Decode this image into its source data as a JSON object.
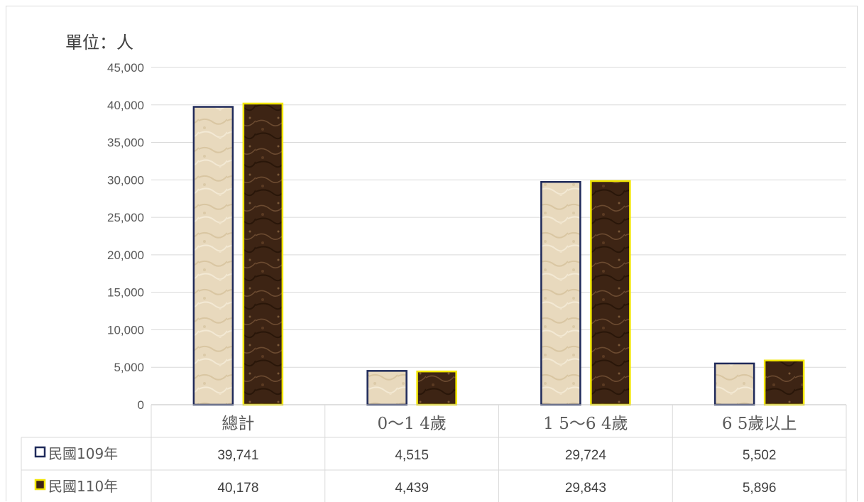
{
  "chart_data": {
    "type": "bar",
    "unit_label": "單位：人",
    "categories": [
      "總計",
      "0～1 4歲",
      "1 5～6 4歲",
      "6 5歲以上"
    ],
    "series": [
      {
        "name": "民國109年",
        "values": [
          39741,
          4515,
          29724,
          5502
        ],
        "labels": [
          "39,741",
          "4,515",
          "29,724",
          "5,502"
        ],
        "color": "#e8d9bd",
        "border": "#1f2a5a",
        "legend_marker": "□"
      },
      {
        "name": "民國110年",
        "values": [
          40178,
          4439,
          29843,
          5896
        ],
        "labels": [
          "40,178",
          "4,439",
          "29,843",
          "5,896"
        ],
        "color": "#3d2414",
        "border": "#f2e600",
        "legend_marker": "■"
      }
    ],
    "ylim": [
      0,
      45000
    ],
    "yticks": [
      "0",
      "5,000",
      "10,000",
      "15,000",
      "20,000",
      "25,000",
      "30,000",
      "35,000",
      "40,000",
      "45,000"
    ],
    "grid": true,
    "legend_placement": "data-table"
  }
}
